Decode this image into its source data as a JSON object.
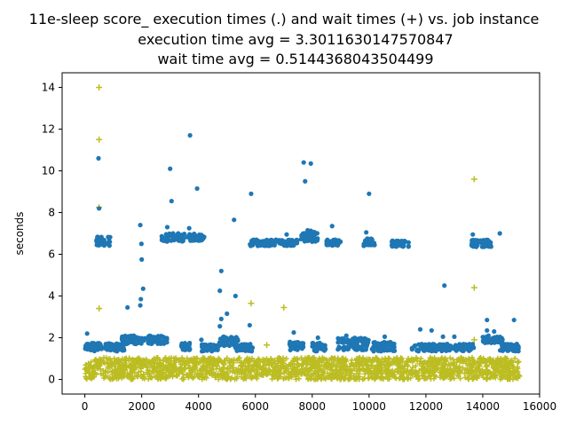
{
  "chart_data": {
    "type": "scatter",
    "title": "11e-sleep score_ execution times (.) and wait times (+) vs. job instance",
    "subtitle_lines": [
      "execution time avg = 3.3011630147570847",
      "wait time avg = 0.5144368043504499"
    ],
    "xlabel": "",
    "ylabel": "seconds",
    "xlim": [
      -800,
      16000
    ],
    "ylim": [
      -0.7,
      14.7
    ],
    "x_ticks": [
      0,
      2000,
      4000,
      6000,
      8000,
      10000,
      12000,
      14000,
      16000
    ],
    "y_ticks": [
      0,
      2,
      4,
      6,
      8,
      10,
      12,
      14
    ],
    "x_tick_labels": [
      "0",
      "2000",
      "4000",
      "6000",
      "8000",
      "10000",
      "12000",
      "14000",
      "16000"
    ],
    "y_tick_labels": [
      "0",
      "2",
      "4",
      "6",
      "8",
      "10",
      "12",
      "14"
    ],
    "x_range": [
      0,
      15300
    ],
    "colors": {
      "execution": "#1f77b4",
      "wait": "#bcbd22"
    },
    "series": [
      {
        "marker": "dot",
        "segments": [
          {
            "x": [
              0,
              600
            ],
            "y": [
              1.35,
              1.75
            ]
          },
          {
            "x": [
              400,
              900
            ],
            "y": [
              6.4,
              6.85
            ]
          },
          {
            "x": [
              700,
              1400
            ],
            "y": [
              1.35,
              1.75
            ]
          },
          {
            "x": [
              1300,
              2900
            ],
            "y": [
              1.7,
              2.1
            ]
          },
          {
            "x": [
              2700,
              3500
            ],
            "y": [
              6.6,
              7.0
            ]
          },
          {
            "x": [
              3400,
              3700
            ],
            "y": [
              1.4,
              1.75
            ]
          },
          {
            "x": [
              3600,
              4200
            ],
            "y": [
              6.65,
              7.0
            ]
          },
          {
            "x": [
              4100,
              4700
            ],
            "y": [
              1.35,
              1.7
            ]
          },
          {
            "x": [
              4700,
              5400
            ],
            "y": [
              1.6,
              2.05
            ]
          },
          {
            "x": [
              5300,
              5900
            ],
            "y": [
              1.35,
              1.7
            ]
          },
          {
            "x": [
              5800,
              7500
            ],
            "y": [
              6.4,
              6.7
            ]
          },
          {
            "x": [
              7200,
              7700
            ],
            "y": [
              1.4,
              1.8
            ]
          },
          {
            "x": [
              7600,
              8200
            ],
            "y": [
              6.6,
              7.15
            ]
          },
          {
            "x": [
              8000,
              8500
            ],
            "y": [
              1.35,
              1.75
            ]
          },
          {
            "x": [
              8500,
              9000
            ],
            "y": [
              6.4,
              6.7
            ]
          },
          {
            "x": [
              8900,
              10000
            ],
            "y": [
              1.4,
              2.0
            ]
          },
          {
            "x": [
              9800,
              10200
            ],
            "y": [
              6.4,
              6.75
            ]
          },
          {
            "x": [
              10100,
              10900
            ],
            "y": [
              1.35,
              1.8
            ]
          },
          {
            "x": [
              10800,
              11400
            ],
            "y": [
              6.35,
              6.65
            ]
          },
          {
            "x": [
              11500,
              13700
            ],
            "y": [
              1.35,
              1.7
            ]
          },
          {
            "x": [
              13600,
              14300
            ],
            "y": [
              6.35,
              6.7
            ]
          },
          {
            "x": [
              14000,
              14700
            ],
            "y": [
              1.75,
              2.05
            ]
          },
          {
            "x": [
              14600,
              15300
            ],
            "y": [
              1.35,
              1.7
            ]
          }
        ],
        "outliers": [
          [
            480,
            10.6
          ],
          [
            500,
            8.2
          ],
          [
            80,
            2.2
          ],
          [
            1500,
            3.45
          ],
          [
            1950,
            3.55
          ],
          [
            1970,
            3.85
          ],
          [
            2000,
            5.75
          ],
          [
            1990,
            6.5
          ],
          [
            1950,
            7.4
          ],
          [
            2050,
            4.35
          ],
          [
            2900,
            7.3
          ],
          [
            3000,
            10.1
          ],
          [
            3050,
            8.55
          ],
          [
            3700,
            11.7
          ],
          [
            3670,
            7.25
          ],
          [
            3950,
            9.15
          ],
          [
            4100,
            1.9
          ],
          [
            4750,
            2.55
          ],
          [
            4800,
            2.9
          ],
          [
            4750,
            4.25
          ],
          [
            4800,
            5.2
          ],
          [
            5000,
            3.15
          ],
          [
            5300,
            4.0
          ],
          [
            5250,
            7.65
          ],
          [
            5850,
            8.9
          ],
          [
            5800,
            2.6
          ],
          [
            7100,
            6.95
          ],
          [
            7350,
            2.25
          ],
          [
            7400,
            1.75
          ],
          [
            7700,
            10.4
          ],
          [
            7750,
            9.5
          ],
          [
            7950,
            10.35
          ],
          [
            8200,
            2.0
          ],
          [
            8700,
            7.35
          ],
          [
            9200,
            2.1
          ],
          [
            9900,
            7.05
          ],
          [
            10000,
            8.9
          ],
          [
            10550,
            2.05
          ],
          [
            11800,
            2.4
          ],
          [
            12200,
            2.35
          ],
          [
            12600,
            2.05
          ],
          [
            12650,
            4.5
          ],
          [
            13000,
            2.05
          ],
          [
            13650,
            6.95
          ],
          [
            14150,
            2.35
          ],
          [
            14150,
            2.85
          ],
          [
            14200,
            2.1
          ],
          [
            14400,
            2.3
          ],
          [
            14600,
            7.0
          ],
          [
            15100,
            2.85
          ]
        ]
      },
      {
        "marker": "plus",
        "segments": [
          {
            "x": [
              0,
              15300
            ],
            "y": [
              0.0,
              1.05
            ]
          }
        ],
        "outliers": [
          [
            500,
            14.0
          ],
          [
            500,
            11.5
          ],
          [
            500,
            8.25
          ],
          [
            500,
            3.4
          ],
          [
            5850,
            3.65
          ],
          [
            6400,
            1.65
          ],
          [
            7000,
            3.45
          ],
          [
            13700,
            9.6
          ],
          [
            13700,
            6.5
          ],
          [
            13700,
            4.4
          ],
          [
            13700,
            1.9
          ]
        ]
      }
    ]
  }
}
